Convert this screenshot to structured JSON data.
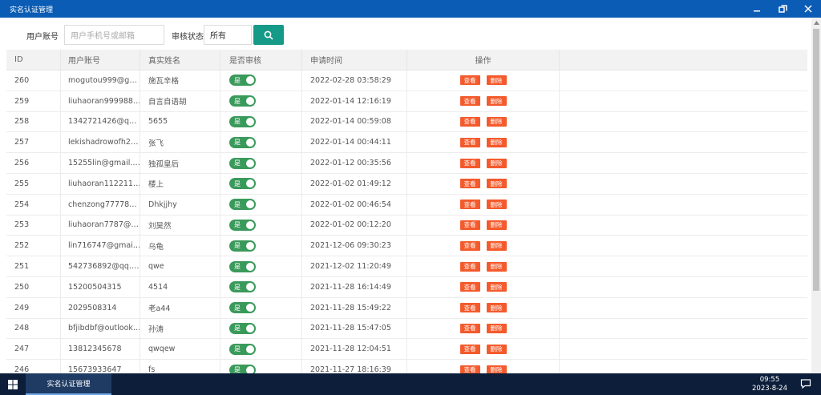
{
  "window": {
    "title": "实名认证管理"
  },
  "search": {
    "account_label": "用户账号",
    "account_placeholder": "用户手机号或邮箱",
    "status_label": "审核状态",
    "status_value": "所有"
  },
  "table": {
    "headers": {
      "id": "ID",
      "account": "用户账号",
      "real_name": "真实姓名",
      "reviewed": "是否审核",
      "apply_time": "申请时间",
      "ops": "操作"
    },
    "view_label": "查看",
    "delete_label": "删除",
    "rows": [
      {
        "id": "260",
        "account": "mogutou999@g…",
        "name": "施瓦辛格",
        "reviewed": "是",
        "time": "2022-02-28 03:58:29"
      },
      {
        "id": "259",
        "account": "liuhaoran999988…",
        "name": "自言自语胡",
        "reviewed": "是",
        "time": "2022-01-14 12:16:19"
      },
      {
        "id": "258",
        "account": "1342721426@q…",
        "name": "5655",
        "reviewed": "是",
        "time": "2022-01-14 00:59:08"
      },
      {
        "id": "257",
        "account": "lekishadrowofh2…",
        "name": "张飞",
        "reviewed": "是",
        "time": "2022-01-14 00:44:11"
      },
      {
        "id": "256",
        "account": "15255lin@gmail.…",
        "name": "独孤皇后",
        "reviewed": "是",
        "time": "2022-01-12 00:35:56"
      },
      {
        "id": "255",
        "account": "liuhaoran112211…",
        "name": "楼上",
        "reviewed": "是",
        "time": "2022-01-02 01:49:12"
      },
      {
        "id": "254",
        "account": "chenzong77778…",
        "name": "Dhkjjhy",
        "reviewed": "是",
        "time": "2022-01-02 00:46:54"
      },
      {
        "id": "253",
        "account": "liuhaoran7787@…",
        "name": "刘昊然",
        "reviewed": "是",
        "time": "2022-01-02 00:12:20"
      },
      {
        "id": "252",
        "account": "lin716747@gmai…",
        "name": "乌龟",
        "reviewed": "是",
        "time": "2021-12-06 09:30:23"
      },
      {
        "id": "251",
        "account": "542736892@qq.…",
        "name": "qwe",
        "reviewed": "是",
        "time": "2021-12-02 11:20:49"
      },
      {
        "id": "250",
        "account": "15200504315",
        "name": "4514",
        "reviewed": "是",
        "time": "2021-11-28 16:14:49"
      },
      {
        "id": "249",
        "account": "2029508314",
        "name": "老a44",
        "reviewed": "是",
        "time": "2021-11-28 15:49:22"
      },
      {
        "id": "248",
        "account": "bfjibdbf@outlook…",
        "name": "孙涛",
        "reviewed": "是",
        "time": "2021-11-28 15:47:05"
      },
      {
        "id": "247",
        "account": "13812345678",
        "name": "qwqew",
        "reviewed": "是",
        "time": "2021-11-28 12:04:51"
      },
      {
        "id": "246",
        "account": "15673933647",
        "name": "fs",
        "reviewed": "是",
        "time": "2021-11-27 18:16:39"
      }
    ]
  },
  "taskbar": {
    "active_item": "实名认证管理",
    "time": "09:55",
    "date": "2023-8-24"
  },
  "colors": {
    "titlebar": "#0b5cb5",
    "search_button": "#159a87",
    "toggle": "#3a9a5b",
    "action_button": "#f45a2c",
    "taskbar": "#0c1e39"
  },
  "icons": {
    "search": "search-icon",
    "minimize": "minimize-icon",
    "restore": "restore-icon",
    "close": "close-icon",
    "start": "windows-logo-icon",
    "notifications": "notification-icon"
  }
}
